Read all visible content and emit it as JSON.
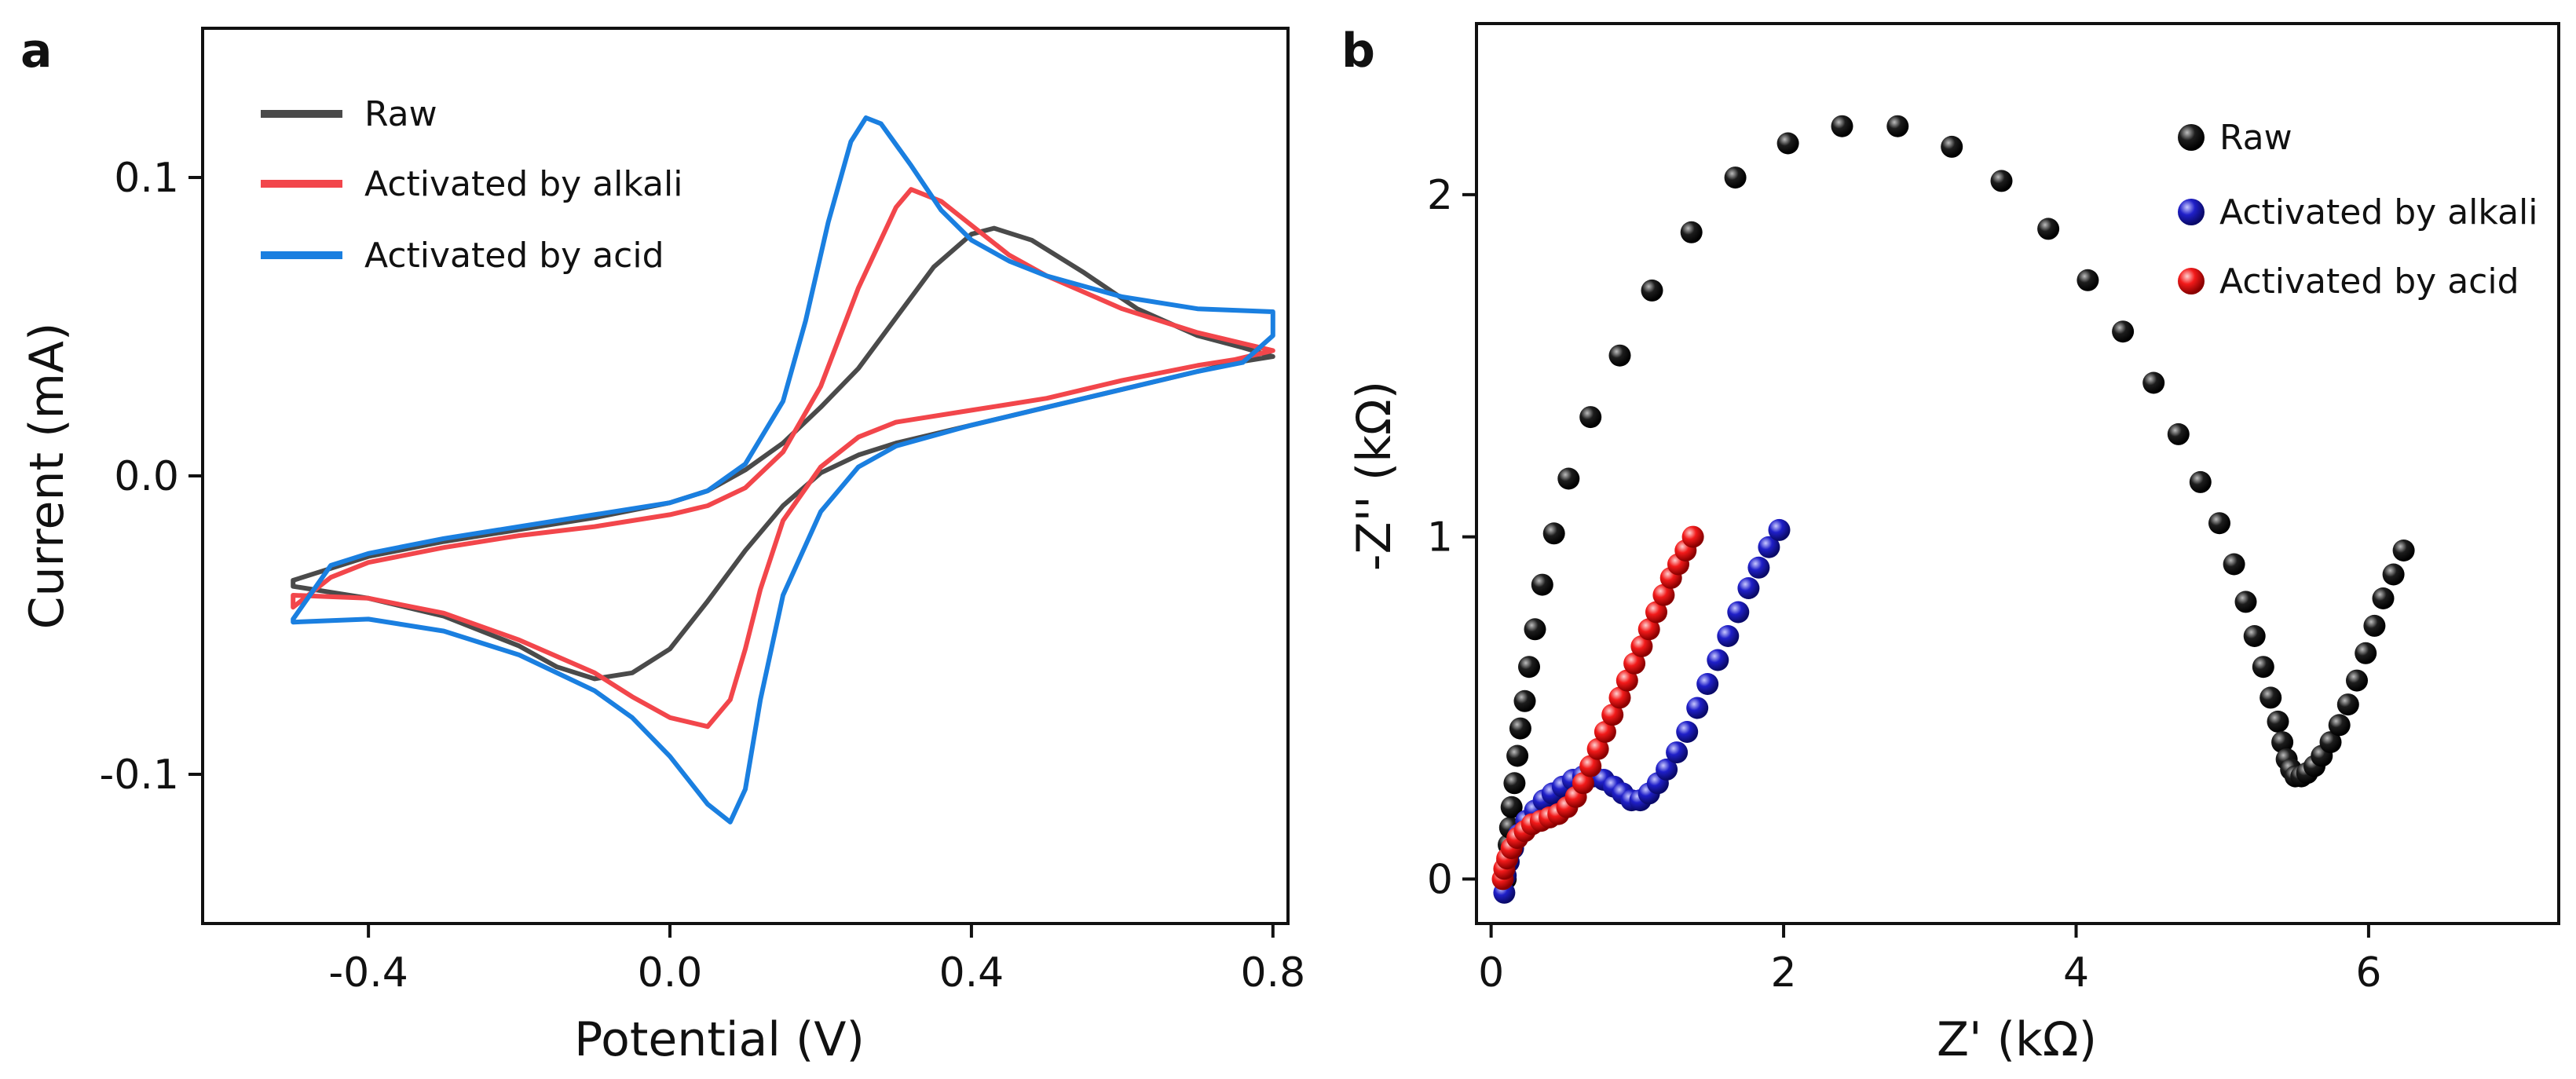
{
  "chart_data": [
    {
      "type": "line",
      "panel_label": "a",
      "xlabel": "Potential (V)",
      "ylabel": "Current (mA)",
      "xlim": [
        -0.62,
        0.82
      ],
      "ylim": [
        -0.15,
        0.15
      ],
      "xticks": [
        -0.4,
        0.0,
        0.4,
        0.8
      ],
      "xtick_labels": [
        "-0.4",
        "0.0",
        "0.4",
        "0.8"
      ],
      "yticks": [
        -0.1,
        0.0,
        0.1
      ],
      "ytick_labels": [
        "-0.1",
        "0.0",
        "0.1"
      ],
      "legend_position": "top-left",
      "series": [
        {
          "name": "Raw",
          "color": "#4a4a4a",
          "points": [
            [
              -0.5,
              -0.035
            ],
            [
              -0.45,
              -0.031
            ],
            [
              -0.4,
              -0.027
            ],
            [
              -0.3,
              -0.022
            ],
            [
              -0.2,
              -0.018
            ],
            [
              -0.1,
              -0.014
            ],
            [
              0.0,
              -0.009
            ],
            [
              0.05,
              -0.005
            ],
            [
              0.1,
              0.002
            ],
            [
              0.15,
              0.011
            ],
            [
              0.2,
              0.023
            ],
            [
              0.25,
              0.036
            ],
            [
              0.3,
              0.053
            ],
            [
              0.35,
              0.07
            ],
            [
              0.4,
              0.081
            ],
            [
              0.43,
              0.083
            ],
            [
              0.48,
              0.079
            ],
            [
              0.55,
              0.068
            ],
            [
              0.62,
              0.056
            ],
            [
              0.7,
              0.047
            ],
            [
              0.76,
              0.043
            ],
            [
              0.8,
              0.04
            ],
            [
              0.75,
              0.038
            ],
            [
              0.7,
              0.035
            ],
            [
              0.6,
              0.029
            ],
            [
              0.5,
              0.023
            ],
            [
              0.4,
              0.017
            ],
            [
              0.3,
              0.011
            ],
            [
              0.25,
              0.007
            ],
            [
              0.2,
              0.001
            ],
            [
              0.15,
              -0.01
            ],
            [
              0.1,
              -0.025
            ],
            [
              0.05,
              -0.042
            ],
            [
              0.0,
              -0.058
            ],
            [
              -0.05,
              -0.066
            ],
            [
              -0.1,
              -0.068
            ],
            [
              -0.15,
              -0.064
            ],
            [
              -0.2,
              -0.057
            ],
            [
              -0.3,
              -0.047
            ],
            [
              -0.4,
              -0.041
            ],
            [
              -0.5,
              -0.037
            ]
          ]
        },
        {
          "name": "Activated by alkali",
          "color": "#f2464b",
          "points": [
            [
              -0.5,
              -0.044
            ],
            [
              -0.45,
              -0.034
            ],
            [
              -0.4,
              -0.029
            ],
            [
              -0.3,
              -0.024
            ],
            [
              -0.2,
              -0.02
            ],
            [
              -0.1,
              -0.017
            ],
            [
              0.0,
              -0.013
            ],
            [
              0.05,
              -0.01
            ],
            [
              0.1,
              -0.004
            ],
            [
              0.15,
              0.008
            ],
            [
              0.2,
              0.03
            ],
            [
              0.25,
              0.063
            ],
            [
              0.3,
              0.09
            ],
            [
              0.32,
              0.096
            ],
            [
              0.36,
              0.092
            ],
            [
              0.4,
              0.084
            ],
            [
              0.45,
              0.074
            ],
            [
              0.5,
              0.067
            ],
            [
              0.6,
              0.056
            ],
            [
              0.7,
              0.048
            ],
            [
              0.8,
              0.042
            ],
            [
              0.75,
              0.039
            ],
            [
              0.7,
              0.037
            ],
            [
              0.6,
              0.032
            ],
            [
              0.5,
              0.026
            ],
            [
              0.4,
              0.022
            ],
            [
              0.3,
              0.018
            ],
            [
              0.25,
              0.013
            ],
            [
              0.2,
              0.003
            ],
            [
              0.15,
              -0.015
            ],
            [
              0.12,
              -0.038
            ],
            [
              0.1,
              -0.058
            ],
            [
              0.08,
              -0.075
            ],
            [
              0.05,
              -0.084
            ],
            [
              0.0,
              -0.081
            ],
            [
              -0.05,
              -0.074
            ],
            [
              -0.1,
              -0.066
            ],
            [
              -0.2,
              -0.055
            ],
            [
              -0.3,
              -0.046
            ],
            [
              -0.4,
              -0.041
            ],
            [
              -0.5,
              -0.04
            ]
          ]
        },
        {
          "name": "Activated by acid",
          "color": "#1a7fe0",
          "points": [
            [
              -0.5,
              -0.048
            ],
            [
              -0.45,
              -0.03
            ],
            [
              -0.4,
              -0.026
            ],
            [
              -0.3,
              -0.021
            ],
            [
              -0.2,
              -0.017
            ],
            [
              -0.1,
              -0.013
            ],
            [
              0.0,
              -0.009
            ],
            [
              0.05,
              -0.005
            ],
            [
              0.1,
              0.004
            ],
            [
              0.15,
              0.025
            ],
            [
              0.18,
              0.052
            ],
            [
              0.21,
              0.085
            ],
            [
              0.24,
              0.112
            ],
            [
              0.26,
              0.12
            ],
            [
              0.28,
              0.118
            ],
            [
              0.32,
              0.104
            ],
            [
              0.36,
              0.089
            ],
            [
              0.4,
              0.079
            ],
            [
              0.45,
              0.072
            ],
            [
              0.5,
              0.067
            ],
            [
              0.6,
              0.06
            ],
            [
              0.7,
              0.056
            ],
            [
              0.8,
              0.055
            ],
            [
              0.8,
              0.047
            ],
            [
              0.76,
              0.038
            ],
            [
              0.7,
              0.035
            ],
            [
              0.6,
              0.029
            ],
            [
              0.5,
              0.023
            ],
            [
              0.4,
              0.017
            ],
            [
              0.3,
              0.01
            ],
            [
              0.25,
              0.003
            ],
            [
              0.2,
              -0.012
            ],
            [
              0.15,
              -0.04
            ],
            [
              0.12,
              -0.075
            ],
            [
              0.1,
              -0.105
            ],
            [
              0.08,
              -0.116
            ],
            [
              0.05,
              -0.11
            ],
            [
              0.0,
              -0.094
            ],
            [
              -0.05,
              -0.081
            ],
            [
              -0.1,
              -0.072
            ],
            [
              -0.2,
              -0.06
            ],
            [
              -0.3,
              -0.052
            ],
            [
              -0.4,
              -0.048
            ],
            [
              -0.5,
              -0.049
            ]
          ]
        }
      ]
    },
    {
      "type": "scatter",
      "panel_label": "b",
      "xlabel": "Z' (kΩ)",
      "ylabel": "-Z'' (kΩ)",
      "xlim": [
        -0.1,
        7.3
      ],
      "ylim": [
        -0.13,
        2.5
      ],
      "xticks": [
        0,
        2,
        4,
        6
      ],
      "xtick_labels": [
        "0",
        "2",
        "4",
        "6"
      ],
      "yticks": [
        0,
        1,
        2
      ],
      "ytick_labels": [
        "0",
        "1",
        "2"
      ],
      "legend_position": "top-right",
      "series": [
        {
          "name": "Raw",
          "color": "#111111",
          "points": [
            [
              0.1,
              0.0
            ],
            [
              0.11,
              0.05
            ],
            [
              0.12,
              0.1
            ],
            [
              0.13,
              0.15
            ],
            [
              0.14,
              0.21
            ],
            [
              0.16,
              0.28
            ],
            [
              0.18,
              0.36
            ],
            [
              0.2,
              0.44
            ],
            [
              0.23,
              0.52
            ],
            [
              0.26,
              0.62
            ],
            [
              0.3,
              0.73
            ],
            [
              0.35,
              0.86
            ],
            [
              0.43,
              1.01
            ],
            [
              0.53,
              1.17
            ],
            [
              0.68,
              1.35
            ],
            [
              0.88,
              1.53
            ],
            [
              1.1,
              1.72
            ],
            [
              1.37,
              1.89
            ],
            [
              1.67,
              2.05
            ],
            [
              2.03,
              2.15
            ],
            [
              2.4,
              2.2
            ],
            [
              2.78,
              2.2
            ],
            [
              3.15,
              2.14
            ],
            [
              3.49,
              2.04
            ],
            [
              3.81,
              1.9
            ],
            [
              4.08,
              1.75
            ],
            [
              4.32,
              1.6
            ],
            [
              4.53,
              1.45
            ],
            [
              4.7,
              1.3
            ],
            [
              4.85,
              1.16
            ],
            [
              4.98,
              1.04
            ],
            [
              5.08,
              0.92
            ],
            [
              5.16,
              0.81
            ],
            [
              5.22,
              0.71
            ],
            [
              5.28,
              0.62
            ],
            [
              5.33,
              0.53
            ],
            [
              5.38,
              0.46
            ],
            [
              5.41,
              0.4
            ],
            [
              5.44,
              0.35
            ],
            [
              5.47,
              0.32
            ],
            [
              5.5,
              0.3
            ],
            [
              5.54,
              0.3
            ],
            [
              5.58,
              0.31
            ],
            [
              5.63,
              0.33
            ],
            [
              5.68,
              0.36
            ],
            [
              5.74,
              0.4
            ],
            [
              5.8,
              0.45
            ],
            [
              5.86,
              0.51
            ],
            [
              5.92,
              0.58
            ],
            [
              5.98,
              0.66
            ],
            [
              6.04,
              0.74
            ],
            [
              6.1,
              0.82
            ],
            [
              6.17,
              0.89
            ],
            [
              6.24,
              0.96
            ]
          ]
        },
        {
          "name": "Activated by alkali",
          "color": "#1f1fc8",
          "points": [
            [
              0.09,
              -0.04
            ],
            [
              0.1,
              0.01
            ],
            [
              0.12,
              0.05
            ],
            [
              0.15,
              0.09
            ],
            [
              0.19,
              0.13
            ],
            [
              0.24,
              0.17
            ],
            [
              0.3,
              0.2
            ],
            [
              0.36,
              0.23
            ],
            [
              0.42,
              0.25
            ],
            [
              0.49,
              0.27
            ],
            [
              0.56,
              0.29
            ],
            [
              0.63,
              0.3
            ],
            [
              0.7,
              0.3
            ],
            [
              0.77,
              0.29
            ],
            [
              0.84,
              0.27
            ],
            [
              0.9,
              0.25
            ],
            [
              0.96,
              0.23
            ],
            [
              1.02,
              0.23
            ],
            [
              1.08,
              0.25
            ],
            [
              1.14,
              0.28
            ],
            [
              1.2,
              0.32
            ],
            [
              1.27,
              0.37
            ],
            [
              1.34,
              0.43
            ],
            [
              1.41,
              0.5
            ],
            [
              1.48,
              0.57
            ],
            [
              1.55,
              0.64
            ],
            [
              1.62,
              0.71
            ],
            [
              1.69,
              0.78
            ],
            [
              1.76,
              0.85
            ],
            [
              1.83,
              0.91
            ],
            [
              1.9,
              0.97
            ],
            [
              1.97,
              1.02
            ]
          ]
        },
        {
          "name": "Activated by acid",
          "color": "#f21a1a",
          "points": [
            [
              0.08,
              0.0
            ],
            [
              0.09,
              0.03
            ],
            [
              0.11,
              0.06
            ],
            [
              0.14,
              0.09
            ],
            [
              0.18,
              0.12
            ],
            [
              0.23,
              0.14
            ],
            [
              0.28,
              0.16
            ],
            [
              0.34,
              0.17
            ],
            [
              0.4,
              0.18
            ],
            [
              0.46,
              0.19
            ],
            [
              0.52,
              0.21
            ],
            [
              0.58,
              0.24
            ],
            [
              0.63,
              0.28
            ],
            [
              0.68,
              0.33
            ],
            [
              0.73,
              0.38
            ],
            [
              0.78,
              0.43
            ],
            [
              0.83,
              0.48
            ],
            [
              0.88,
              0.53
            ],
            [
              0.93,
              0.58
            ],
            [
              0.98,
              0.63
            ],
            [
              1.03,
              0.68
            ],
            [
              1.08,
              0.73
            ],
            [
              1.13,
              0.78
            ],
            [
              1.18,
              0.83
            ],
            [
              1.23,
              0.88
            ],
            [
              1.28,
              0.92
            ],
            [
              1.33,
              0.96
            ],
            [
              1.38,
              1.0
            ]
          ]
        }
      ]
    }
  ]
}
